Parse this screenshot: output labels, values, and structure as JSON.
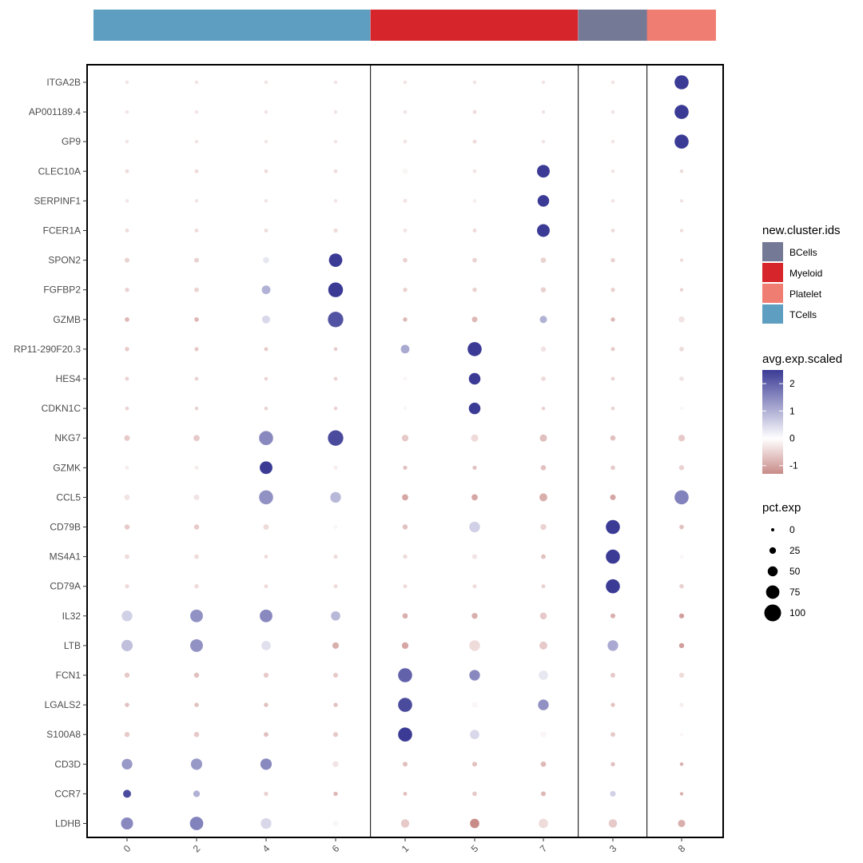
{
  "chart_data": {
    "type": "dotplot",
    "columns": [
      "0",
      "2",
      "4",
      "6",
      "1",
      "5",
      "7",
      "3",
      "8"
    ],
    "column_groups": [
      "TCells",
      "TCells",
      "TCells",
      "TCells",
      "Myeloid",
      "Myeloid",
      "Myeloid",
      "BCells",
      "Platelet"
    ],
    "genes": [
      "ITGA2B",
      "AP001189.4",
      "GP9",
      "CLEC10A",
      "SERPINF1",
      "FCER1A",
      "SPON2",
      "FGFBP2",
      "GZMB",
      "RP11-290F20.3",
      "HES4",
      "CDKN1C",
      "NKG7",
      "GZMK",
      "CCL5",
      "CD79B",
      "MS4A1",
      "CD79A",
      "IL32",
      "LTB",
      "FCN1",
      "LGALS2",
      "S100A8",
      "CD3D",
      "CCR7",
      "LDHB"
    ],
    "avg_exp_scaled": [
      [
        -0.3,
        -0.3,
        -0.3,
        -0.3,
        -0.3,
        -0.3,
        -0.3,
        -0.3,
        2.5
      ],
      [
        -0.3,
        -0.3,
        -0.3,
        -0.3,
        -0.3,
        -0.4,
        -0.3,
        -0.3,
        2.5
      ],
      [
        -0.3,
        -0.3,
        -0.3,
        -0.3,
        -0.3,
        -0.4,
        -0.3,
        -0.3,
        2.5
      ],
      [
        -0.4,
        -0.4,
        -0.4,
        -0.4,
        -0.1,
        -0.3,
        2.5,
        -0.3,
        -0.4
      ],
      [
        -0.3,
        -0.3,
        -0.3,
        -0.3,
        -0.3,
        -0.2,
        2.5,
        -0.3,
        -0.3
      ],
      [
        -0.4,
        -0.4,
        -0.4,
        -0.4,
        -0.3,
        -0.4,
        2.5,
        -0.4,
        -0.4
      ],
      [
        -0.5,
        -0.5,
        0.3,
        2.5,
        -0.5,
        -0.5,
        -0.5,
        -0.5,
        -0.4
      ],
      [
        -0.5,
        -0.5,
        1.0,
        2.5,
        -0.5,
        -0.5,
        -0.5,
        -0.5,
        -0.5
      ],
      [
        -0.8,
        -0.8,
        0.5,
        2.2,
        -0.8,
        -0.8,
        1.0,
        -0.8,
        -0.3
      ],
      [
        -0.6,
        -0.6,
        -0.6,
        -0.6,
        1.1,
        2.5,
        -0.3,
        -0.6,
        -0.4
      ],
      [
        -0.5,
        -0.5,
        -0.5,
        -0.5,
        -0.1,
        2.5,
        -0.4,
        -0.5,
        -0.3
      ],
      [
        -0.5,
        -0.5,
        -0.5,
        -0.5,
        -0.1,
        2.5,
        -0.5,
        -0.5,
        -0.1
      ],
      [
        -0.6,
        -0.6,
        1.5,
        2.3,
        -0.6,
        -0.4,
        -0.7,
        -0.7,
        -0.6
      ],
      [
        -0.2,
        -0.2,
        2.5,
        -0.2,
        -0.7,
        -0.7,
        -0.7,
        -0.6,
        -0.5
      ],
      [
        -0.3,
        -0.3,
        1.4,
        0.9,
        -1.0,
        -1.0,
        -0.9,
        -1.0,
        1.6
      ],
      [
        -0.6,
        -0.6,
        -0.4,
        -0.1,
        -0.7,
        0.6,
        -0.5,
        2.5,
        -0.7
      ],
      [
        -0.4,
        -0.4,
        -0.4,
        -0.4,
        -0.4,
        -0.3,
        -0.7,
        2.5,
        -0.1
      ],
      [
        -0.4,
        -0.4,
        -0.4,
        -0.4,
        -0.4,
        -0.4,
        -0.5,
        2.5,
        -0.5
      ],
      [
        0.6,
        1.4,
        1.5,
        0.9,
        -0.9,
        -0.9,
        -0.6,
        -0.9,
        -1.1
      ],
      [
        0.8,
        1.4,
        0.4,
        -0.9,
        -1.0,
        -0.4,
        -0.6,
        1.1,
        -1.1
      ],
      [
        -0.6,
        -0.7,
        -0.6,
        -0.6,
        2.0,
        1.5,
        0.3,
        -0.6,
        -0.4
      ],
      [
        -0.7,
        -0.7,
        -0.7,
        -0.7,
        2.3,
        -0.1,
        1.4,
        -0.7,
        -0.2
      ],
      [
        -0.6,
        -0.6,
        -0.7,
        -0.6,
        2.5,
        0.5,
        -0.1,
        -0.6,
        -0.1
      ],
      [
        1.3,
        1.3,
        1.5,
        -0.3,
        -0.7,
        -0.7,
        -0.8,
        -0.7,
        -0.9
      ],
      [
        2.3,
        1.0,
        -0.5,
        -0.8,
        -0.7,
        -0.6,
        -0.8,
        0.6,
        -0.9
      ],
      [
        1.5,
        1.6,
        0.5,
        -0.1,
        -0.6,
        -1.3,
        -0.4,
        -0.6,
        -0.9
      ]
    ],
    "pct_exp": [
      [
        3,
        3,
        3,
        3,
        3,
        3,
        3,
        3,
        80
      ],
      [
        3,
        3,
        3,
        3,
        3,
        5,
        3,
        3,
        80
      ],
      [
        3,
        3,
        3,
        3,
        5,
        6,
        3,
        3,
        80
      ],
      [
        5,
        5,
        5,
        4,
        18,
        4,
        70,
        3,
        3
      ],
      [
        3,
        3,
        3,
        3,
        6,
        3,
        62,
        3,
        3
      ],
      [
        5,
        5,
        5,
        8,
        6,
        6,
        70,
        5,
        2
      ],
      [
        12,
        12,
        22,
        75,
        10,
        10,
        16,
        9,
        2
      ],
      [
        8,
        10,
        40,
        85,
        8,
        9,
        15,
        8,
        2
      ],
      [
        10,
        10,
        35,
        90,
        8,
        18,
        30,
        8,
        22
      ],
      [
        8,
        7,
        5,
        3,
        40,
        80,
        15,
        6,
        10
      ],
      [
        5,
        5,
        3,
        4,
        4,
        62,
        10,
        4,
        10
      ],
      [
        4,
        3,
        3,
        4,
        4,
        62,
        3,
        3,
        3
      ],
      [
        18,
        22,
        80,
        90,
        25,
        30,
        30,
        15,
        25
      ],
      [
        6,
        6,
        70,
        6,
        7,
        7,
        15,
        9,
        14
      ],
      [
        18,
        18,
        80,
        55,
        22,
        22,
        35,
        18,
        80
      ],
      [
        14,
        14,
        18,
        6,
        14,
        55,
        20,
        80,
        10
      ],
      [
        10,
        10,
        5,
        7,
        9,
        13,
        11,
        80,
        3
      ],
      [
        8,
        8,
        6,
        6,
        6,
        6,
        6,
        80,
        9
      ],
      [
        55,
        70,
        70,
        45,
        16,
        20,
        27,
        12,
        13
      ],
      [
        60,
        70,
        45,
        24,
        25,
        55,
        35,
        55,
        14
      ],
      [
        14,
        14,
        13,
        12,
        80,
        55,
        45,
        12,
        13
      ],
      [
        9,
        9,
        9,
        8,
        80,
        18,
        55,
        7,
        6
      ],
      [
        14,
        15,
        11,
        13,
        80,
        45,
        22,
        11,
        3
      ],
      [
        55,
        60,
        60,
        20,
        12,
        12,
        16,
        8,
        3
      ],
      [
        35,
        25,
        8,
        8,
        5,
        10,
        12,
        18,
        2
      ],
      [
        65,
        75,
        55,
        18,
        38,
        45,
        45,
        38,
        30
      ]
    ],
    "x_tick_labels": [
      "0",
      "2",
      "4",
      "6",
      "1",
      "5",
      "7",
      "3",
      "8"
    ],
    "color_scale": {
      "title": "avg.exp.scaled",
      "low": "#c88b88",
      "mid": "#ffffff",
      "high": "#3b3b96",
      "min": -1.3,
      "max": 2.5,
      "ticks": [
        "2",
        "1",
        "0",
        "-1"
      ],
      "tick_values": [
        2,
        1,
        0,
        -1
      ]
    },
    "size_scale": {
      "title": "pct.exp",
      "ticks": [
        "0",
        "25",
        "50",
        "75",
        "100"
      ],
      "tick_values": [
        0,
        25,
        50,
        75,
        100
      ]
    },
    "group_legend": {
      "title": "new.cluster.ids",
      "entries": [
        {
          "label": "BCells",
          "color": "#747a96"
        },
        {
          "label": "Myeloid",
          "color": "#d7262b"
        },
        {
          "label": "Platelet",
          "color": "#f07d72"
        },
        {
          "label": "TCells",
          "color": "#5d9ec1"
        }
      ]
    },
    "group_colors": {
      "TCells": "#5d9ec1",
      "Myeloid": "#d7262b",
      "BCells": "#747a96",
      "Platelet": "#f07d72"
    }
  }
}
